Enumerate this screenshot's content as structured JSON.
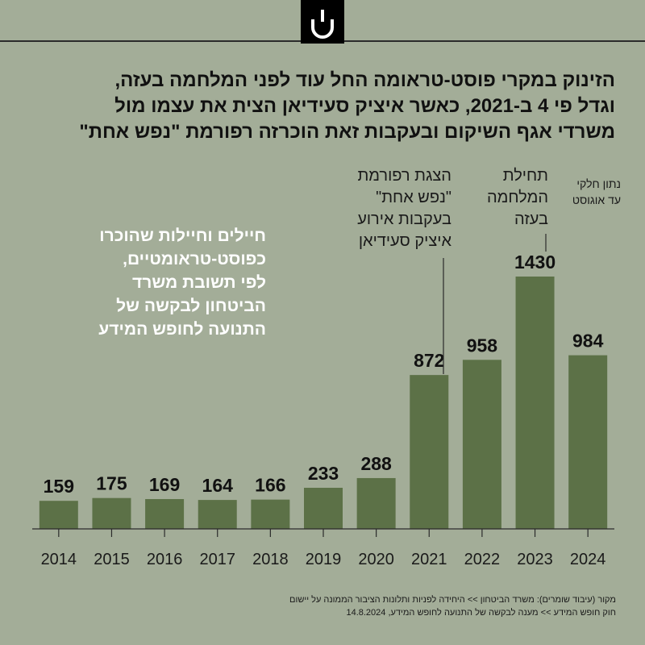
{
  "title_lines": [
    "הזינוק במקרי פוסט-טראומה החל עוד לפני המלחמה בעזה,",
    "וגדל פי 4 ב-2021, כאשר איציק סעידיאן הצית את עצמו מול",
    "משרדי אגף השיקום ובעקבות זאת הוכרזה רפורמת \"נפש אחת\""
  ],
  "side_label_lines": [
    "חיילים וחיילות שהוכרו",
    "כפוסט-טראומטיים,",
    "לפי תשובת משרד",
    "הביטחון לבקשה של",
    "התנועה לחופש המידע"
  ],
  "annotations": {
    "y2021": [
      "הצגת רפורמת",
      "\"נפש אחת\"",
      "בעקבות אירוע",
      "איציק סעידיאן"
    ],
    "y2023": [
      "תחילת",
      "המלחמה",
      "בעזה"
    ],
    "y2024": [
      "נתון חלקי",
      "עד אוגוסט"
    ]
  },
  "source_lines": [
    "מקור (עיבוד שומרים): משרד הביטחון >> היחידה לפניות ותלונות הציבור הממונה על יישום",
    "חוק חופש המידע >> מענה לבקשה של התנועה לחופש המידע, 14.8.2024"
  ],
  "colors": {
    "background": "#a3ad98",
    "bar": "#5c7147",
    "text": "#111111",
    "side_label": "#ffffff"
  },
  "logo_icon": "shomrim-logo-icon",
  "chart_data": {
    "type": "bar",
    "categories": [
      "2014",
      "2015",
      "2016",
      "2017",
      "2018",
      "2019",
      "2020",
      "2021",
      "2022",
      "2023",
      "2024"
    ],
    "values": [
      159,
      175,
      169,
      164,
      166,
      233,
      288,
      872,
      958,
      1430,
      984
    ],
    "data_labels": [
      "159",
      "175",
      "169",
      "164",
      "166",
      "233",
      "288",
      "872",
      "958",
      "1430",
      "984"
    ],
    "ylim": [
      0,
      1430
    ],
    "grid": false,
    "legend": "none"
  }
}
